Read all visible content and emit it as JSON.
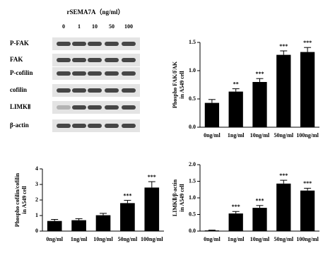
{
  "blot": {
    "header": "rSEMA7A（ng/ml）",
    "lanes": [
      "0",
      "1",
      "10",
      "50",
      "100"
    ],
    "rows": [
      "P-FAK",
      "FAK",
      "P-cofilin",
      "cofilin",
      "LIMKⅡ",
      "β-actin"
    ]
  },
  "chart_data": [
    {
      "type": "bar",
      "y_label": "Phospho FAK/FAK\nin A549 cell",
      "categories": [
        "0ng/ml",
        "1ng/ml",
        "10ng/ml",
        "50ng/ml",
        "100ng/ml"
      ],
      "values": [
        0.43,
        0.63,
        0.8,
        1.28,
        1.33
      ],
      "errors": [
        0.06,
        0.05,
        0.06,
        0.07,
        0.08
      ],
      "annotations": [
        null,
        "**",
        "***",
        "***",
        "***"
      ],
      "color": "#000000",
      "ylim": [
        0,
        1.5
      ],
      "yticks": [
        {
          "value": 0,
          "label": "0.0"
        },
        {
          "value": 0.5,
          "label": "0.5"
        },
        {
          "value": 1,
          "label": "1.0"
        },
        {
          "value": 1.5,
          "label": "1.5"
        }
      ]
    },
    {
      "type": "bar",
      "y_label": "Phospho cofilin/cofilin\nin A549 cell",
      "categories": [
        "0ng/ml",
        "1ng/ml",
        "10ng/ml",
        "50ng/ml",
        "100ng/ml"
      ],
      "values": [
        0.65,
        0.7,
        1.02,
        1.8,
        2.8
      ],
      "errors": [
        0.1,
        0.1,
        0.12,
        0.18,
        0.38
      ],
      "annotations": [
        null,
        null,
        null,
        "***",
        "***"
      ],
      "color": "#000000",
      "ylim": [
        0,
        4
      ],
      "yticks": [
        0,
        1,
        2,
        3,
        4
      ]
    },
    {
      "type": "bar",
      "y_label": "LIMKⅡ/β-actin\nin A549 cell",
      "categories": [
        "0ng/ml",
        "1ng/ml",
        "10ng/ml",
        "50ng/ml",
        "100ng/ml"
      ],
      "values": [
        0.02,
        0.53,
        0.7,
        1.43,
        1.22
      ],
      "errors": [
        0.01,
        0.06,
        0.07,
        0.1,
        0.07
      ],
      "annotations": [
        null,
        "***",
        "***",
        "***",
        "***"
      ],
      "color": "#000000",
      "ylim": [
        0,
        2
      ],
      "yticks": [
        {
          "value": 0,
          "label": "0.0"
        },
        {
          "value": 0.5,
          "label": "0.5"
        },
        {
          "value": 1,
          "label": "1.0"
        },
        {
          "value": 1.5,
          "label": "1.5"
        },
        {
          "value": 2,
          "label": "2.0"
        }
      ]
    }
  ]
}
